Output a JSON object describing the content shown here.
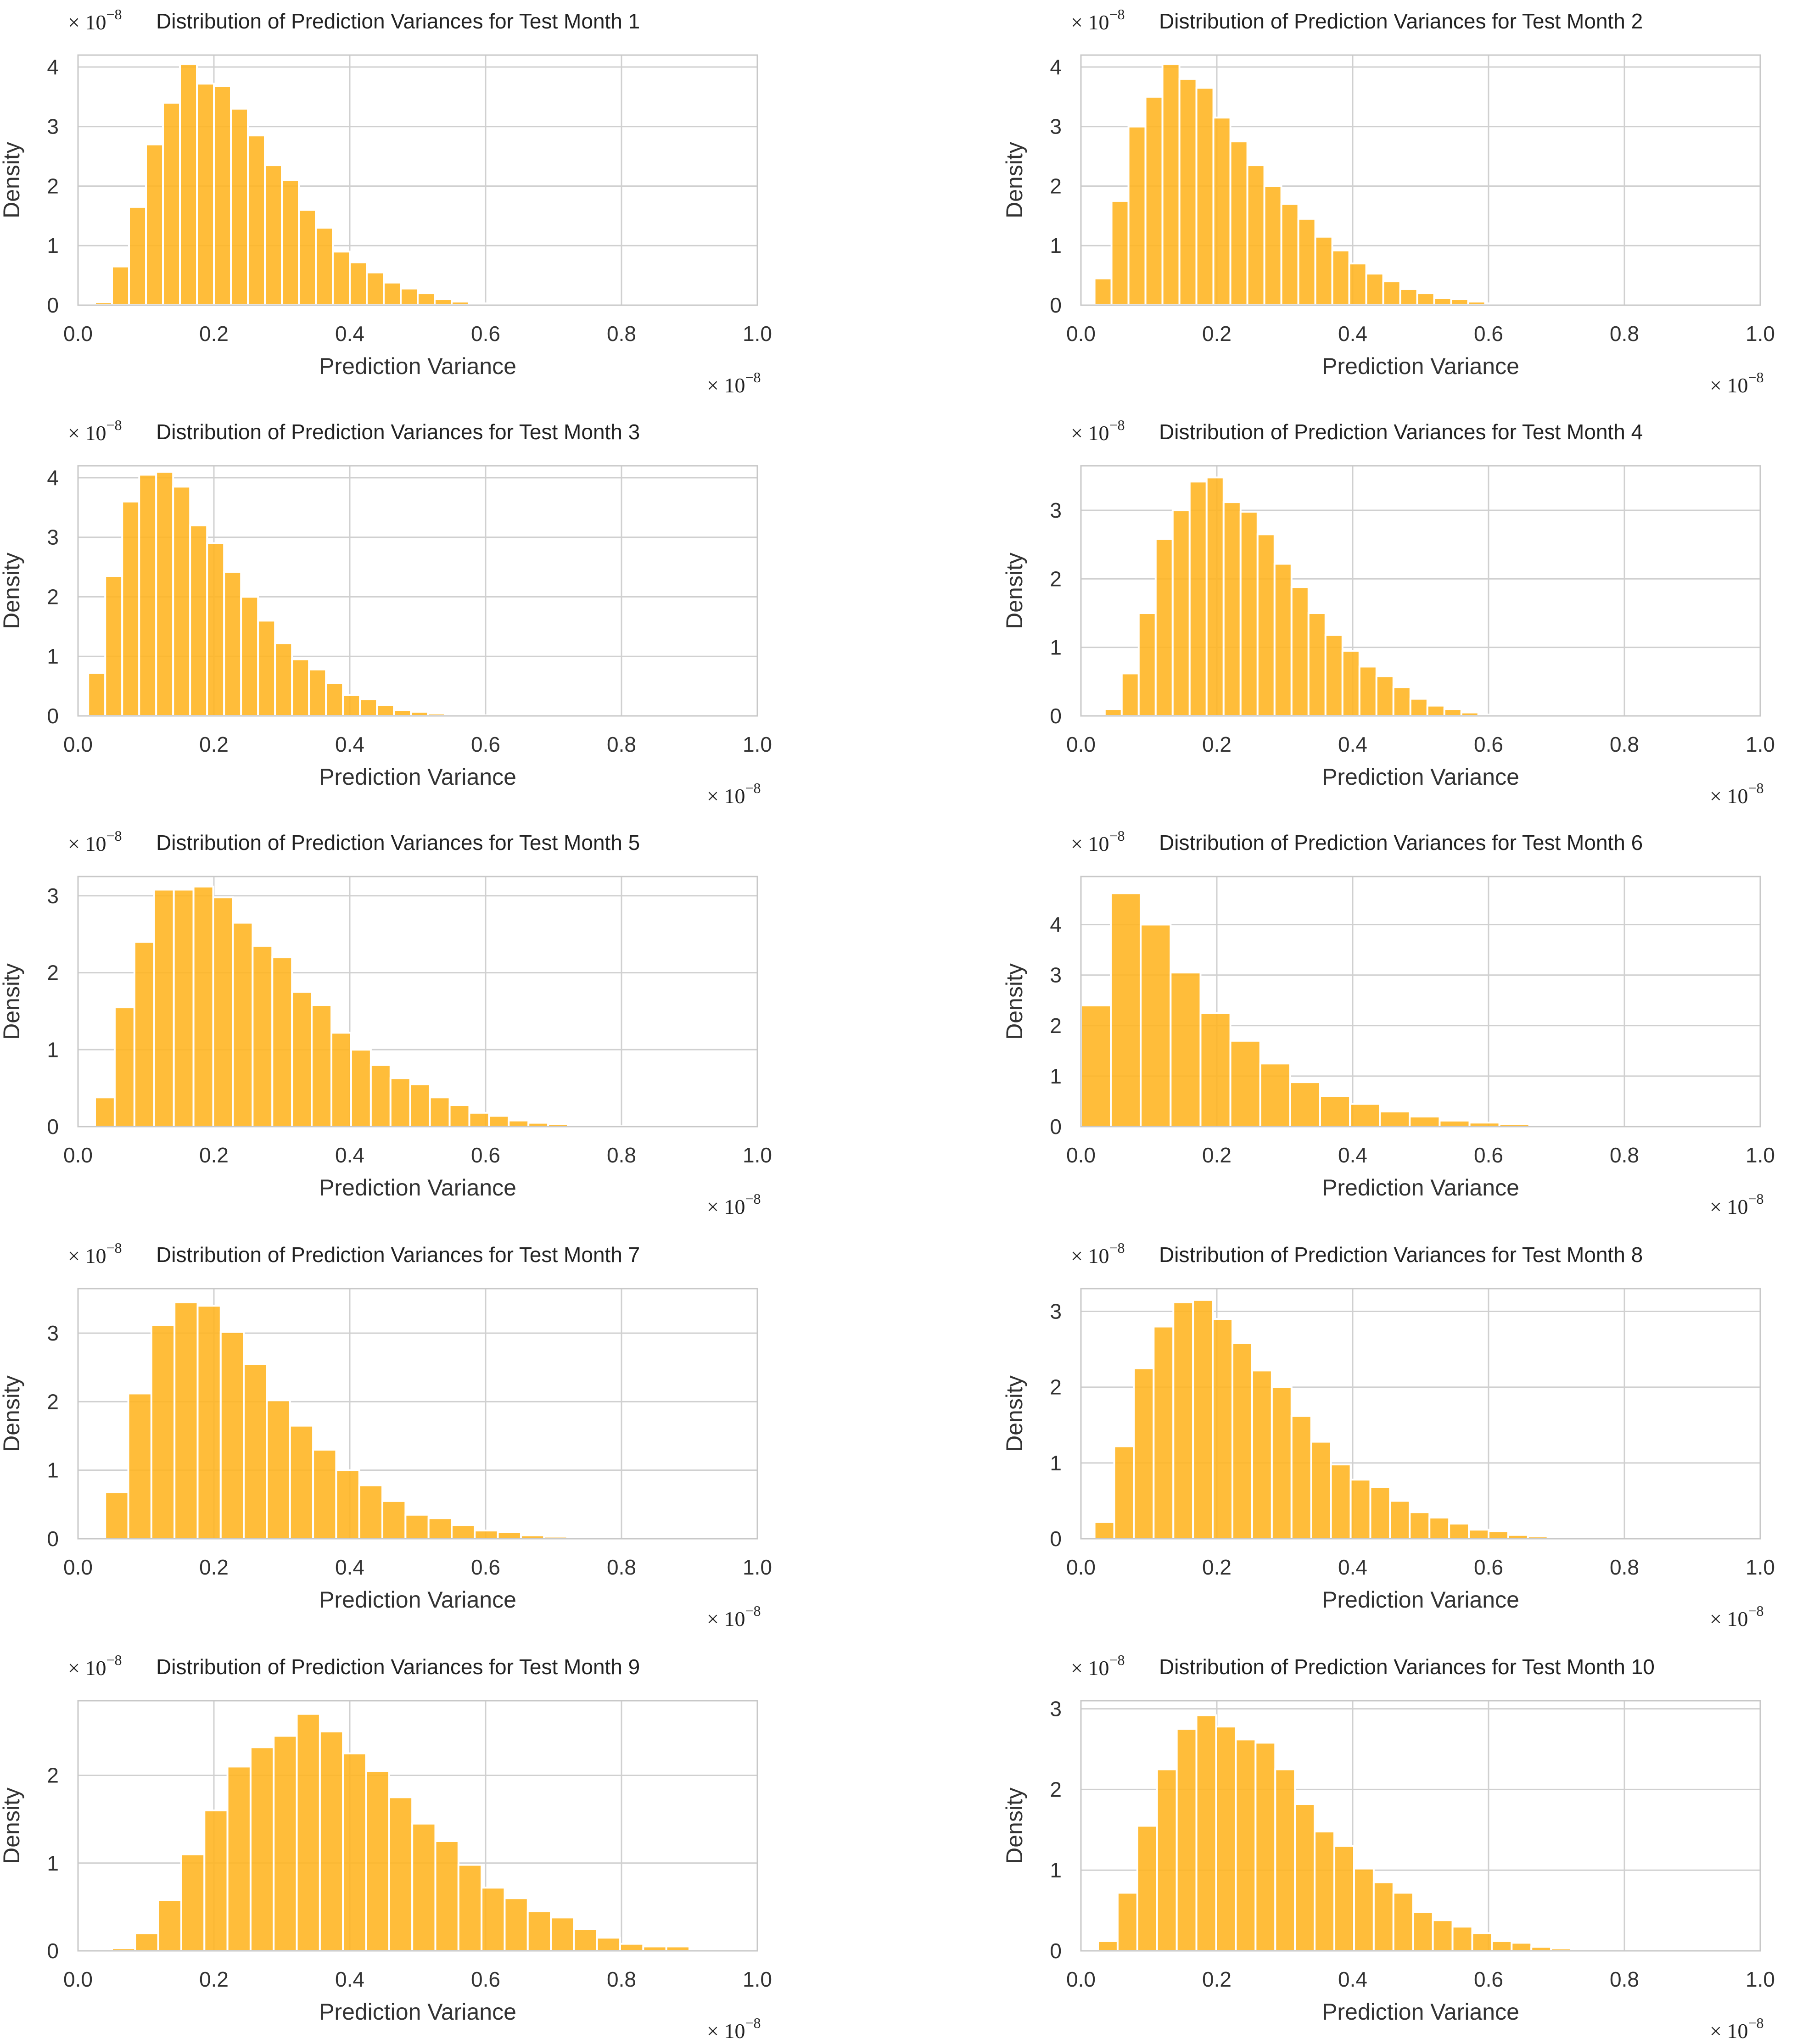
{
  "figure": {
    "bar_color": "#FFB41F",
    "bar_edge_color": "#ffffff",
    "grid_color": "#d0d0d0",
    "frame_color": "#c8c8c8"
  },
  "chart_data": [
    {
      "type": "bar",
      "title": "Distribution of Prediction Variances for Test Month 1",
      "xlabel": "Prediction Variance",
      "ylabel": "Density",
      "x_scale_label": "× 10",
      "x_scale_exponent": "−8",
      "y_scale_label": "× 10",
      "y_scale_exponent": "−8",
      "xlim": [
        0,
        1.0
      ],
      "ylim": [
        0,
        4.2
      ],
      "xticks": [
        "0.0",
        "0.2",
        "0.4",
        "0.6",
        "0.8",
        "1.0"
      ],
      "xtick_values": [
        0,
        0.2,
        0.4,
        0.6,
        0.8,
        1.0
      ],
      "yticks": [
        "0",
        "1",
        "2",
        "3",
        "4"
      ],
      "ytick_values": [
        0,
        1,
        2,
        3,
        4
      ],
      "bin_start": 0.025,
      "bin_width": 0.025,
      "values": [
        0.05,
        0.65,
        1.65,
        2.7,
        3.4,
        4.05,
        3.72,
        3.68,
        3.3,
        2.85,
        2.35,
        2.1,
        1.6,
        1.3,
        0.9,
        0.72,
        0.55,
        0.38,
        0.28,
        0.2,
        0.1,
        0.06,
        0.03,
        0.02,
        0.01,
        0.01,
        0.005,
        0.005
      ]
    },
    {
      "type": "bar",
      "title": "Distribution of Prediction Variances for Test Month 2",
      "xlabel": "Prediction Variance",
      "ylabel": "Density",
      "x_scale_label": "× 10",
      "x_scale_exponent": "−8",
      "y_scale_label": "× 10",
      "y_scale_exponent": "−8",
      "xlim": [
        0,
        1.0
      ],
      "ylim": [
        0,
        4.2
      ],
      "xticks": [
        "0.0",
        "0.2",
        "0.4",
        "0.6",
        "0.8",
        "1.0"
      ],
      "xtick_values": [
        0,
        0.2,
        0.4,
        0.6,
        0.8,
        1.0
      ],
      "yticks": [
        "0",
        "1",
        "2",
        "3",
        "4"
      ],
      "ytick_values": [
        0,
        1,
        2,
        3,
        4
      ],
      "bin_start": 0.02,
      "bin_width": 0.025,
      "values": [
        0.45,
        1.75,
        3.0,
        3.5,
        4.05,
        3.8,
        3.65,
        3.15,
        2.75,
        2.35,
        2.0,
        1.7,
        1.45,
        1.15,
        0.92,
        0.7,
        0.53,
        0.4,
        0.27,
        0.2,
        0.12,
        0.1,
        0.06,
        0.03,
        0.02,
        0.01,
        0.01
      ]
    },
    {
      "type": "bar",
      "title": "Distribution of Prediction Variances for Test Month 3",
      "xlabel": "Prediction Variance",
      "ylabel": "Density",
      "x_scale_label": "× 10",
      "x_scale_exponent": "−8",
      "y_scale_label": "× 10",
      "y_scale_exponent": "−8",
      "xlim": [
        0,
        1.0
      ],
      "ylim": [
        0,
        4.2
      ],
      "xticks": [
        "0.0",
        "0.2",
        "0.4",
        "0.6",
        "0.8",
        "1.0"
      ],
      "xtick_values": [
        0,
        0.2,
        0.4,
        0.6,
        0.8,
        1.0
      ],
      "yticks": [
        "0",
        "1",
        "2",
        "3",
        "4"
      ],
      "ytick_values": [
        0,
        1,
        2,
        3,
        4
      ],
      "bin_start": 0.015,
      "bin_width": 0.025,
      "values": [
        0.72,
        2.35,
        3.6,
        4.05,
        4.1,
        3.85,
        3.2,
        2.9,
        2.42,
        2.0,
        1.6,
        1.22,
        0.95,
        0.78,
        0.55,
        0.35,
        0.28,
        0.18,
        0.1,
        0.07,
        0.04,
        0.02,
        0.01,
        0.01
      ]
    },
    {
      "type": "bar",
      "title": "Distribution of Prediction Variances for Test Month 4",
      "xlabel": "Prediction Variance",
      "ylabel": "Density",
      "x_scale_label": "× 10",
      "x_scale_exponent": "−8",
      "y_scale_label": "× 10",
      "y_scale_exponent": "−8",
      "xlim": [
        0,
        1.0
      ],
      "ylim": [
        0,
        3.65
      ],
      "xticks": [
        "0.0",
        "0.2",
        "0.4",
        "0.6",
        "0.8",
        "1.0"
      ],
      "xtick_values": [
        0,
        0.2,
        0.4,
        0.6,
        0.8,
        1.0
      ],
      "yticks": [
        "0",
        "1",
        "2",
        "3"
      ],
      "ytick_values": [
        0,
        1,
        2,
        3
      ],
      "bin_start": 0.035,
      "bin_width": 0.025,
      "values": [
        0.1,
        0.62,
        1.5,
        2.58,
        3.0,
        3.42,
        3.48,
        3.12,
        2.98,
        2.65,
        2.22,
        1.88,
        1.5,
        1.18,
        0.95,
        0.72,
        0.58,
        0.42,
        0.25,
        0.15,
        0.1,
        0.05,
        0.02,
        0.01,
        0.01,
        0.005,
        0.005
      ]
    },
    {
      "type": "bar",
      "title": "Distribution of Prediction Variances for Test Month 5",
      "xlabel": "Prediction Variance",
      "ylabel": "Density",
      "x_scale_label": "× 10",
      "x_scale_exponent": "−8",
      "y_scale_label": "× 10",
      "y_scale_exponent": "−8",
      "xlim": [
        0,
        1.0
      ],
      "ylim": [
        0,
        3.25
      ],
      "xticks": [
        "0.0",
        "0.2",
        "0.4",
        "0.6",
        "0.8",
        "1.0"
      ],
      "xtick_values": [
        0,
        0.2,
        0.4,
        0.6,
        0.8,
        1.0
      ],
      "yticks": [
        "0",
        "1",
        "2",
        "3"
      ],
      "ytick_values": [
        0,
        1,
        2,
        3
      ],
      "bin_start": 0.025,
      "bin_width": 0.029,
      "values": [
        0.38,
        1.55,
        2.4,
        3.08,
        3.08,
        3.12,
        2.98,
        2.65,
        2.35,
        2.2,
        1.75,
        1.58,
        1.22,
        1.0,
        0.8,
        0.63,
        0.55,
        0.38,
        0.28,
        0.18,
        0.14,
        0.08,
        0.05,
        0.03,
        0.01,
        0.01,
        0.005
      ]
    },
    {
      "type": "bar",
      "title": "Distribution of Prediction Variances for Test Month 6",
      "xlabel": "Prediction Variance",
      "ylabel": "Density",
      "x_scale_label": "× 10",
      "x_scale_exponent": "−8",
      "y_scale_label": "× 10",
      "y_scale_exponent": "−8",
      "xlim": [
        0,
        1.0
      ],
      "ylim": [
        0,
        4.95
      ],
      "xticks": [
        "0.0",
        "0.2",
        "0.4",
        "0.6",
        "0.8",
        "1.0"
      ],
      "xtick_values": [
        0,
        0.2,
        0.4,
        0.6,
        0.8,
        1.0
      ],
      "yticks": [
        "0",
        "1",
        "2",
        "3",
        "4"
      ],
      "ytick_values": [
        0,
        1,
        2,
        3,
        4
      ],
      "bin_start": 0.0,
      "bin_width": 0.044,
      "values": [
        2.4,
        4.62,
        4.0,
        3.05,
        2.25,
        1.7,
        1.25,
        0.88,
        0.6,
        0.45,
        0.3,
        0.2,
        0.12,
        0.08,
        0.05,
        0.03,
        0.01,
        0.01
      ]
    },
    {
      "type": "bar",
      "title": "Distribution of Prediction Variances for Test Month 7",
      "xlabel": "Prediction Variance",
      "ylabel": "Density",
      "x_scale_label": "× 10",
      "x_scale_exponent": "−8",
      "y_scale_label": "× 10",
      "y_scale_exponent": "−8",
      "xlim": [
        0,
        1.0
      ],
      "ylim": [
        0,
        3.65
      ],
      "xticks": [
        "0.0",
        "0.2",
        "0.4",
        "0.6",
        "0.8",
        "1.0"
      ],
      "xtick_values": [
        0,
        0.2,
        0.4,
        0.6,
        0.8,
        1.0
      ],
      "yticks": [
        "0",
        "1",
        "2",
        "3"
      ],
      "ytick_values": [
        0,
        1,
        2,
        3
      ],
      "bin_start": 0.04,
      "bin_width": 0.034,
      "values": [
        0.68,
        2.12,
        3.12,
        3.45,
        3.4,
        3.02,
        2.55,
        2.02,
        1.65,
        1.3,
        1.0,
        0.78,
        0.55,
        0.35,
        0.3,
        0.2,
        0.12,
        0.1,
        0.05,
        0.03,
        0.01
      ]
    },
    {
      "type": "bar",
      "title": "Distribution of Prediction Variances for Test Month 8",
      "xlabel": "Prediction Variance",
      "ylabel": "Density",
      "x_scale_label": "× 10",
      "x_scale_exponent": "−8",
      "y_scale_label": "× 10",
      "y_scale_exponent": "−8",
      "xlim": [
        0,
        1.0
      ],
      "ylim": [
        0,
        3.3
      ],
      "xticks": [
        "0.0",
        "0.2",
        "0.4",
        "0.6",
        "0.8",
        "1.0"
      ],
      "xtick_values": [
        0,
        0.2,
        0.4,
        0.6,
        0.8,
        1.0
      ],
      "yticks": [
        "0",
        "1",
        "2",
        "3"
      ],
      "ytick_values": [
        0,
        1,
        2,
        3
      ],
      "bin_start": 0.02,
      "bin_width": 0.029,
      "values": [
        0.22,
        1.22,
        2.25,
        2.8,
        3.12,
        3.15,
        2.9,
        2.58,
        2.22,
        2.0,
        1.62,
        1.28,
        0.98,
        0.78,
        0.68,
        0.5,
        0.35,
        0.28,
        0.2,
        0.12,
        0.1,
        0.05,
        0.03,
        0.02,
        0.01,
        0.01
      ]
    },
    {
      "type": "bar",
      "title": "Distribution of Prediction Variances for Test Month 9",
      "xlabel": "Prediction Variance",
      "ylabel": "Density",
      "x_scale_label": "× 10",
      "x_scale_exponent": "−8",
      "y_scale_label": "× 10",
      "y_scale_exponent": "−8",
      "xlim": [
        0,
        1.0
      ],
      "ylim": [
        0,
        2.85
      ],
      "xticks": [
        "0.0",
        "0.2",
        "0.4",
        "0.6",
        "0.8",
        "1.0"
      ],
      "xtick_values": [
        0,
        0.2,
        0.4,
        0.6,
        0.8,
        1.0
      ],
      "yticks": [
        "0",
        "1",
        "2"
      ],
      "ytick_values": [
        0,
        1,
        2
      ],
      "bin_start": 0.05,
      "bin_width": 0.034,
      "values": [
        0.03,
        0.2,
        0.58,
        1.1,
        1.6,
        2.1,
        2.32,
        2.45,
        2.7,
        2.5,
        2.25,
        2.05,
        1.75,
        1.45,
        1.25,
        0.98,
        0.72,
        0.6,
        0.45,
        0.38,
        0.25,
        0.15,
        0.08,
        0.05,
        0.05,
        0.02
      ]
    },
    {
      "type": "bar",
      "title": "Distribution of Prediction Variances for Test Month 10",
      "xlabel": "Prediction Variance",
      "ylabel": "Density",
      "x_scale_label": "× 10",
      "x_scale_exponent": "−8",
      "y_scale_label": "× 10",
      "y_scale_exponent": "−8",
      "xlim": [
        0,
        1.0
      ],
      "ylim": [
        0,
        3.1
      ],
      "xticks": [
        "0.0",
        "0.2",
        "0.4",
        "0.6",
        "0.8",
        "1.0"
      ],
      "xtick_values": [
        0,
        0.2,
        0.4,
        0.6,
        0.8,
        1.0
      ],
      "yticks": [
        "0",
        "1",
        "2",
        "3"
      ],
      "ytick_values": [
        0,
        1,
        2,
        3
      ],
      "bin_start": 0.025,
      "bin_width": 0.029,
      "values": [
        0.12,
        0.72,
        1.55,
        2.25,
        2.75,
        2.92,
        2.78,
        2.62,
        2.58,
        2.25,
        1.82,
        1.48,
        1.3,
        1.02,
        0.85,
        0.72,
        0.48,
        0.38,
        0.3,
        0.22,
        0.12,
        0.1,
        0.05,
        0.03,
        0.02,
        0.01
      ]
    }
  ]
}
